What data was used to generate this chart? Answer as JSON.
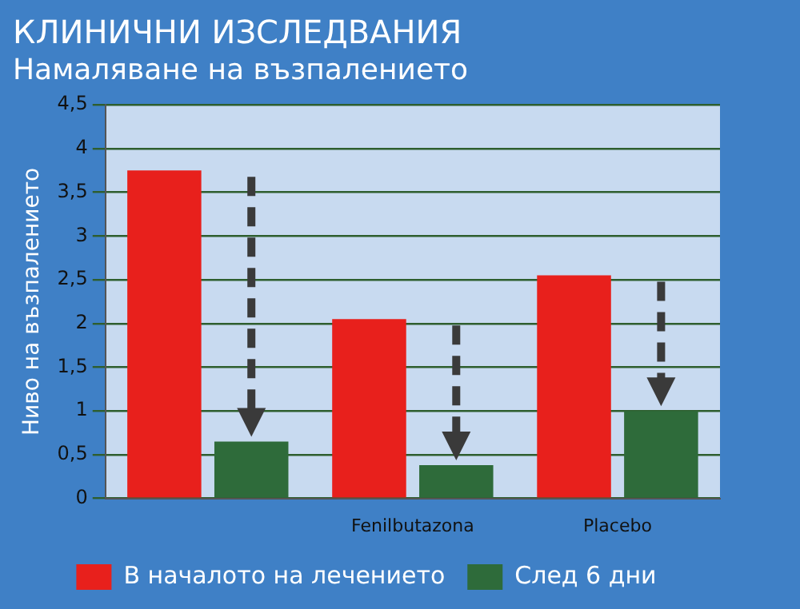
{
  "chart_data": {
    "type": "bar",
    "title": "КЛИНИЧНИ ИЗСЛЕДВАНИЯ",
    "subtitle": "Намаляване на възпалението",
    "ylabel": "Ниво на възпалението",
    "categories": [
      null,
      "Fenilbutazona",
      "Placebo"
    ],
    "series": [
      {
        "name": "В началото на лечението",
        "color": "#e8201c",
        "values": [
          3.75,
          2.05,
          2.55
        ]
      },
      {
        "name": "След 6 дни",
        "color": "#2e6b3a",
        "values": [
          0.65,
          0.38,
          1.0
        ]
      }
    ],
    "ylim": [
      0,
      4.5
    ],
    "yticks": [
      0,
      {
        "value": 0.5,
        "label": "0,5"
      },
      1,
      {
        "value": 1.5,
        "label": "1,5"
      },
      2,
      {
        "value": 2.5,
        "label": "2,5"
      },
      3,
      {
        "value": 3.5,
        "label": "3,5"
      },
      4,
      {
        "value": 4.5,
        "label": "4,5"
      }
    ],
    "grid": "y",
    "legend": "bottom"
  }
}
